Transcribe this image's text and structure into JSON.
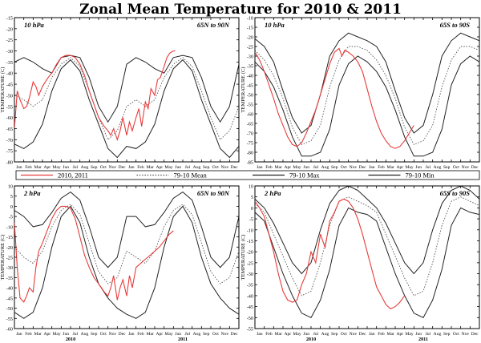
{
  "title": "Zonal Mean Temperature for 2010 & 2011",
  "months_2010": [
    "Jan",
    "Feb",
    "Mar",
    "Apr",
    "May",
    "Jun",
    "Jul",
    "Aug",
    "Sep",
    "Oct",
    "Nov",
    "Dec"
  ],
  "months_2011": [
    "Jan",
    "Feb",
    "Mar",
    "Apr",
    "May",
    "Jun",
    "Jul",
    "Aug",
    "Sep",
    "Oct",
    "Nov",
    "Dec"
  ],
  "year_labels": [
    "2010",
    "2011"
  ],
  "ylabel": "TEMPERATURE (C)",
  "colors": {
    "obs": "#e83b3b",
    "clim": "#222222",
    "mean": "#555555",
    "frame": "#000000"
  },
  "legend": {
    "items": [
      {
        "label": "2010, 2011",
        "style": "solid",
        "color": "#e83b3b"
      },
      {
        "label": "79-10 Mean",
        "style": "dotted",
        "color": "#555555"
      },
      {
        "label": "79-10 Max",
        "style": "solid",
        "color": "#222222"
      },
      {
        "label": "79-10 Min",
        "style": "solid",
        "color": "#222222"
      }
    ]
  },
  "chart_data": [
    {
      "type": "line",
      "id": "p1",
      "pressure": "10 hPa",
      "region": "65N to 90N",
      "ylim": [
        -80,
        -15
      ],
      "yticks": [
        -80,
        -75,
        -70,
        -65,
        -60,
        -55,
        -50,
        -45,
        -40,
        -35,
        -30,
        -25,
        -20,
        -15
      ],
      "clim": {
        "months": [
          0,
          1,
          2,
          3,
          4,
          5,
          6,
          7,
          8,
          9,
          10,
          11,
          12
        ],
        "max": [
          -35,
          -33,
          -35,
          -38,
          -40,
          -33,
          -32,
          -33,
          -42,
          -55,
          -62,
          -55,
          -36
        ],
        "mean": [
          -50,
          -52,
          -55,
          -52,
          -42,
          -36,
          -33,
          -37,
          -48,
          -60,
          -70,
          -66,
          -55
        ],
        "min": [
          -72,
          -74,
          -71,
          -63,
          -48,
          -38,
          -34,
          -39,
          -52,
          -63,
          -74,
          -78,
          -73
        ]
      },
      "obs": {
        "x": [
          0,
          0.3,
          0.6,
          1,
          1.3,
          1.6,
          2,
          2.3,
          2.6,
          3,
          3.3,
          3.6,
          4,
          4.5,
          5,
          5.5,
          6,
          6.5,
          7,
          7.5,
          8,
          8.5,
          9,
          9.3,
          9.6,
          10,
          10.3,
          10.6,
          11,
          11.3,
          11.6,
          12,
          12.3,
          12.6,
          13,
          13.3,
          13.6,
          14,
          14.3,
          14.6,
          15,
          15.3,
          15.6,
          16,
          16.3,
          16.6,
          17,
          17.2
        ],
        "y": [
          -65,
          -48,
          -52,
          -56,
          -55,
          -51,
          -44,
          -46,
          -50,
          -46,
          -44,
          -42,
          -40,
          -36,
          -33,
          -32,
          -32,
          -33,
          -36,
          -41,
          -48,
          -54,
          -60,
          -62,
          -64,
          -66,
          -68,
          -65,
          -70,
          -66,
          -60,
          -68,
          -62,
          -66,
          -60,
          -56,
          -64,
          -53,
          -56,
          -47,
          -50,
          -43,
          -42,
          -37,
          -33,
          -31,
          -30,
          -30
        ]
      }
    },
    {
      "type": "line",
      "id": "p2",
      "pressure": "10 hPa",
      "region": "65S to 90S",
      "ylim": [
        -85,
        -10
      ],
      "yticks": [
        -85,
        -80,
        -75,
        -70,
        -65,
        -60,
        -55,
        -50,
        -45,
        -40,
        -35,
        -30,
        -25,
        -20,
        -15,
        -10
      ],
      "clim": {
        "months": [
          0,
          1,
          2,
          3,
          4,
          5,
          6,
          7,
          8,
          9,
          10,
          11,
          12
        ],
        "max": [
          -21,
          -25,
          -33,
          -48,
          -62,
          -70,
          -66,
          -50,
          -30,
          -22,
          -18,
          -20,
          -22
        ],
        "mean": [
          -27,
          -32,
          -40,
          -52,
          -67,
          -76,
          -74,
          -66,
          -46,
          -32,
          -25,
          -25,
          -27
        ],
        "min": [
          -33,
          -38,
          -46,
          -58,
          -72,
          -82,
          -82,
          -80,
          -68,
          -45,
          -34,
          -30,
          -33
        ]
      },
      "obs": {
        "x": [
          0,
          0.5,
          1,
          1.5,
          2,
          2.5,
          3,
          3.5,
          4,
          4.5,
          5,
          5.5,
          6,
          6.5,
          7,
          7.5,
          8,
          8.5,
          9,
          9.3,
          9.6,
          10,
          10.5,
          11,
          11.5,
          12,
          12.5,
          13,
          13.5,
          14,
          14.5,
          15,
          15.5,
          16,
          16.5,
          17
        ],
        "y": [
          -28,
          -32,
          -38,
          -45,
          -52,
          -60,
          -66,
          -72,
          -76,
          -77,
          -75,
          -70,
          -64,
          -58,
          -50,
          -42,
          -34,
          -28,
          -26,
          -30,
          -27,
          -28,
          -30,
          -33,
          -38,
          -47,
          -56,
          -64,
          -70,
          -74,
          -77,
          -78,
          -77,
          -74,
          -70,
          -66
        ]
      }
    },
    {
      "type": "line",
      "id": "p3",
      "pressure": "2 hPa",
      "region": "65N to 90N",
      "ylim": [
        -60,
        10
      ],
      "yticks": [
        -60,
        -55,
        -50,
        -45,
        -40,
        -35,
        -30,
        -25,
        -20,
        -15,
        -10,
        -5,
        0,
        5,
        10
      ],
      "clim": {
        "months": [
          0,
          1,
          2,
          3,
          4,
          5,
          6,
          7,
          8,
          9,
          10,
          11,
          12
        ],
        "max": [
          -2,
          -5,
          -10,
          -9,
          -3,
          4,
          7,
          3,
          -10,
          -25,
          -30,
          -25,
          -5
        ],
        "mean": [
          -20,
          -25,
          -28,
          -22,
          -10,
          -2,
          1,
          -4,
          -18,
          -32,
          -38,
          -35,
          -22
        ],
        "min": [
          -52,
          -55,
          -52,
          -40,
          -20,
          -5,
          0,
          -8,
          -25,
          -38,
          -45,
          -50,
          -53
        ]
      },
      "obs": {
        "x": [
          0,
          0.3,
          0.6,
          1,
          1.3,
          1.6,
          2,
          2.3,
          2.6,
          3,
          3.5,
          4,
          4.5,
          5,
          5.5,
          6,
          6.5,
          7,
          7.5,
          8,
          8.5,
          9,
          9.3,
          9.6,
          10,
          10.3,
          10.6,
          11,
          11.3,
          11.6,
          12,
          12.3,
          12.6,
          13,
          13.5,
          14,
          14.5,
          15,
          15.5,
          16,
          16.5,
          17
        ],
        "y": [
          -8,
          -30,
          -45,
          -47,
          -44,
          -40,
          -42,
          -30,
          -22,
          -18,
          -12,
          -6,
          -2,
          0,
          0,
          -1,
          -6,
          -15,
          -24,
          -30,
          -35,
          -38,
          -40,
          -42,
          -44,
          -40,
          -34,
          -46,
          -40,
          -36,
          -44,
          -34,
          -40,
          -30,
          -28,
          -26,
          -24,
          -22,
          -20,
          -17,
          -14,
          -12
        ]
      }
    },
    {
      "type": "line",
      "id": "p4",
      "pressure": "2 hPa",
      "region": "65S to 90S",
      "ylim": [
        -55,
        10
      ],
      "yticks": [
        -55,
        -50,
        -45,
        -40,
        -35,
        -30,
        -25,
        -20,
        -15,
        -10,
        -5,
        0,
        5,
        10
      ],
      "clim": {
        "months": [
          0,
          1,
          2,
          3,
          4,
          5,
          6,
          7,
          8,
          9,
          10,
          11,
          12
        ],
        "max": [
          4,
          0,
          -7,
          -16,
          -25,
          -30,
          -25,
          -10,
          2,
          8,
          10,
          8,
          4
        ],
        "mean": [
          2,
          -2,
          -12,
          -22,
          -32,
          -40,
          -38,
          -25,
          -8,
          3,
          5,
          3,
          1
        ],
        "min": [
          -2,
          -6,
          -18,
          -30,
          -40,
          -48,
          -50,
          -42,
          -28,
          -8,
          0,
          -2,
          -3
        ]
      },
      "obs": {
        "x": [
          0,
          0.5,
          1,
          1.5,
          2,
          2.5,
          3,
          3.5,
          4,
          4.5,
          5,
          5.5,
          6,
          6.5,
          7,
          7.5,
          8,
          8.5,
          9,
          9.5,
          10,
          10.5,
          11,
          11.5,
          12,
          12.5,
          13,
          13.5,
          14,
          14.5,
          15,
          15.5,
          16
        ],
        "y": [
          3,
          0,
          -4,
          -12,
          -20,
          -30,
          -38,
          -42,
          -43,
          -42,
          -35,
          -30,
          -20,
          -25,
          -12,
          -18,
          -6,
          -2,
          3,
          4,
          3,
          0,
          -5,
          -12,
          -20,
          -28,
          -36,
          -40,
          -44,
          -46,
          -45,
          -43,
          -40
        ]
      }
    }
  ]
}
